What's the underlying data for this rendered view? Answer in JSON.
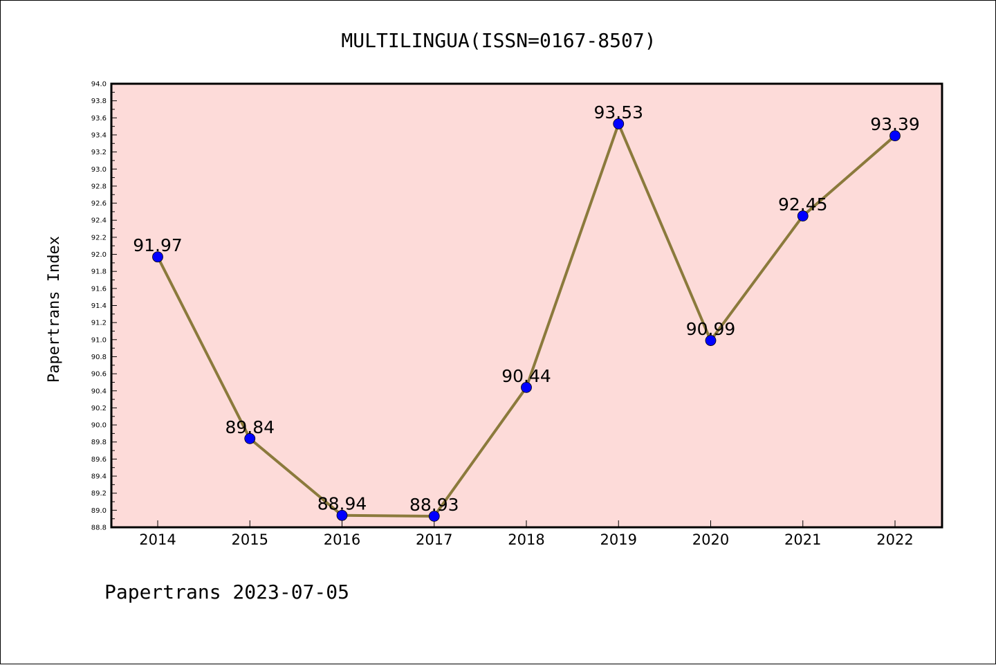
{
  "chart_data": {
    "type": "line",
    "title": "MULTILINGUA(ISSN=0167-8507)",
    "xlabel": "",
    "ylabel": "Papertrans Index",
    "footer": "Papertrans 2023-07-05",
    "categories": [
      "2014",
      "2015",
      "2016",
      "2017",
      "2018",
      "2019",
      "2020",
      "2021",
      "2022"
    ],
    "series": [
      {
        "values": [
          91.97,
          89.84,
          88.94,
          88.93,
          90.44,
          93.53,
          90.99,
          92.45,
          93.39
        ],
        "labels": [
          "91.97",
          "89.84",
          "88.94",
          "88.93",
          "90.44",
          "93.53",
          "90.99",
          "92.45",
          "93.39"
        ]
      }
    ],
    "ylim": [
      88.8,
      94.0
    ],
    "yticks": [
      "88.8",
      "89.0",
      "89.2",
      "89.4",
      "89.6",
      "89.8",
      "90.0",
      "90.2",
      "90.4",
      "90.6",
      "90.8",
      "91.0",
      "91.2",
      "91.4",
      "91.6",
      "91.8",
      "92.0",
      "92.2",
      "92.4",
      "92.6",
      "92.8",
      "93.0",
      "93.2",
      "93.4",
      "93.6",
      "93.8",
      "94.0"
    ],
    "grid": false,
    "colors": {
      "plot_background": "#fddbd9",
      "line": "#8b7a3c",
      "marker": "#0000ff"
    }
  }
}
